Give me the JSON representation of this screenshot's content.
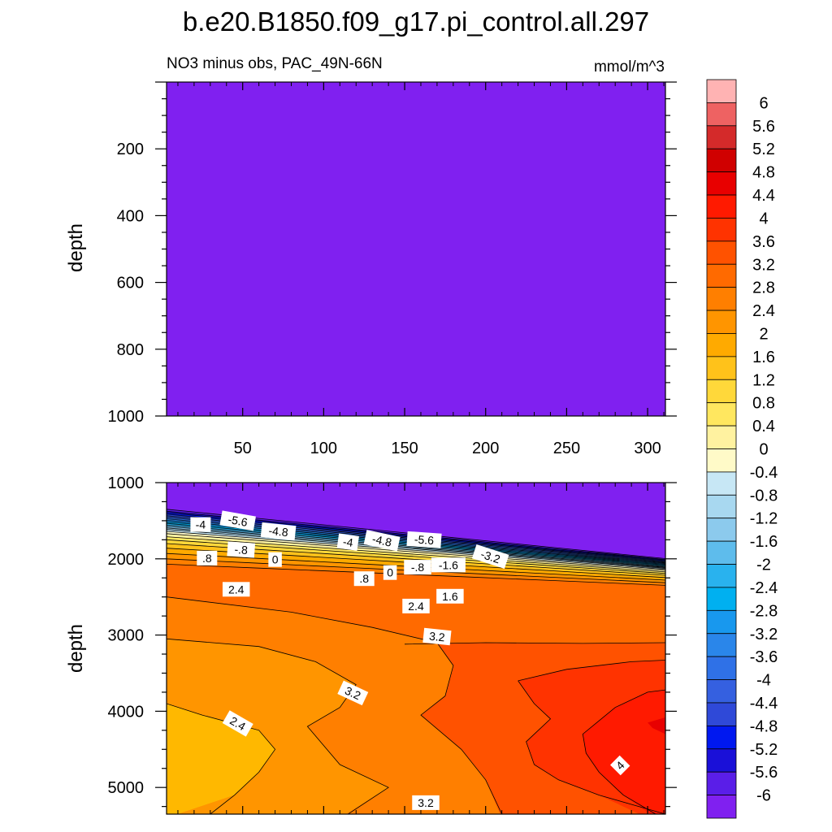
{
  "chart_data": {
    "type": "contour",
    "title": "b.e20.B1850.f09_g17.pi_control.all.297",
    "subtitle_left": "NO3 minus obs, PAC_49N-66N",
    "subtitle_right": "mmol/m^3",
    "ylabel": "depth",
    "x_ticks": [
      "50",
      "100",
      "150",
      "200",
      "250",
      "300"
    ],
    "xlim": [
      3,
      311
    ],
    "upper_panel": {
      "ylim": [
        1000,
        0
      ],
      "y_ticks": [
        "200",
        "400",
        "600",
        "800",
        "1000"
      ],
      "fill_value": "-6"
    },
    "lower_panel": {
      "ylim": [
        5350,
        1000
      ],
      "y_ticks": [
        "1000",
        "2000",
        "3000",
        "4000",
        "5000"
      ]
    },
    "colorbar": {
      "labels": [
        "6",
        "5.6",
        "5.2",
        "4.8",
        "4.4",
        "4",
        "3.6",
        "3.2",
        "2.8",
        "2.4",
        "2",
        "1.6",
        "1.2",
        "0.8",
        "0.4",
        "0",
        "-0.4",
        "-0.8",
        "-1.2",
        "-1.6",
        "-2",
        "-2.4",
        "-2.8",
        "-3.2",
        "-3.6",
        "-4",
        "-4.4",
        "-4.8",
        "-5.2",
        "-5.6",
        "-6"
      ],
      "colors": [
        "#ffb3b3",
        "#ee6262",
        "#d42a2a",
        "#d00000",
        "#e80000",
        "#ff1a00",
        "#ff3300",
        "#ff5200",
        "#ff6a00",
        "#ff7f00",
        "#ff9500",
        "#ffaa00",
        "#ffc21a",
        "#ffd83a",
        "#ffe75f",
        "#fff2a0",
        "#fffac8",
        "#c7e7f5",
        "#a8d8f0",
        "#8ccaed",
        "#5ebcec",
        "#29b2ee",
        "#00b0f0",
        "#1898ee",
        "#2a86ea",
        "#2f71e7",
        "#3560e0",
        "#2f49d8",
        "#0018f0",
        "#1a10d8",
        "#5a1ee8",
        "#8020f0"
      ]
    },
    "contour_labels": [
      "-4",
      "-5.6",
      "-4.8",
      "-4",
      "-4.8",
      "-5.6",
      "-3.2",
      ".8",
      "-.8",
      "0",
      ".8",
      "0",
      "-.8",
      "-1.6",
      "2.4",
      "1.6",
      "2.4",
      "3.2",
      "3.2",
      "2.4",
      "4",
      "3.2"
    ],
    "regions": {
      "upper_fill": "#8020f0",
      "deep_fill": "#8020f0",
      "band_2_4": "#ff7f00",
      "band_2_0": "#ff9500",
      "band_1_6": "#ffb800",
      "band_2_8": "#ff6a00",
      "band_3_2": "#ff5200",
      "band_3_6": "#ff3300",
      "band_4_0": "#ff1a00",
      "band_4_4": "#e80000"
    }
  }
}
